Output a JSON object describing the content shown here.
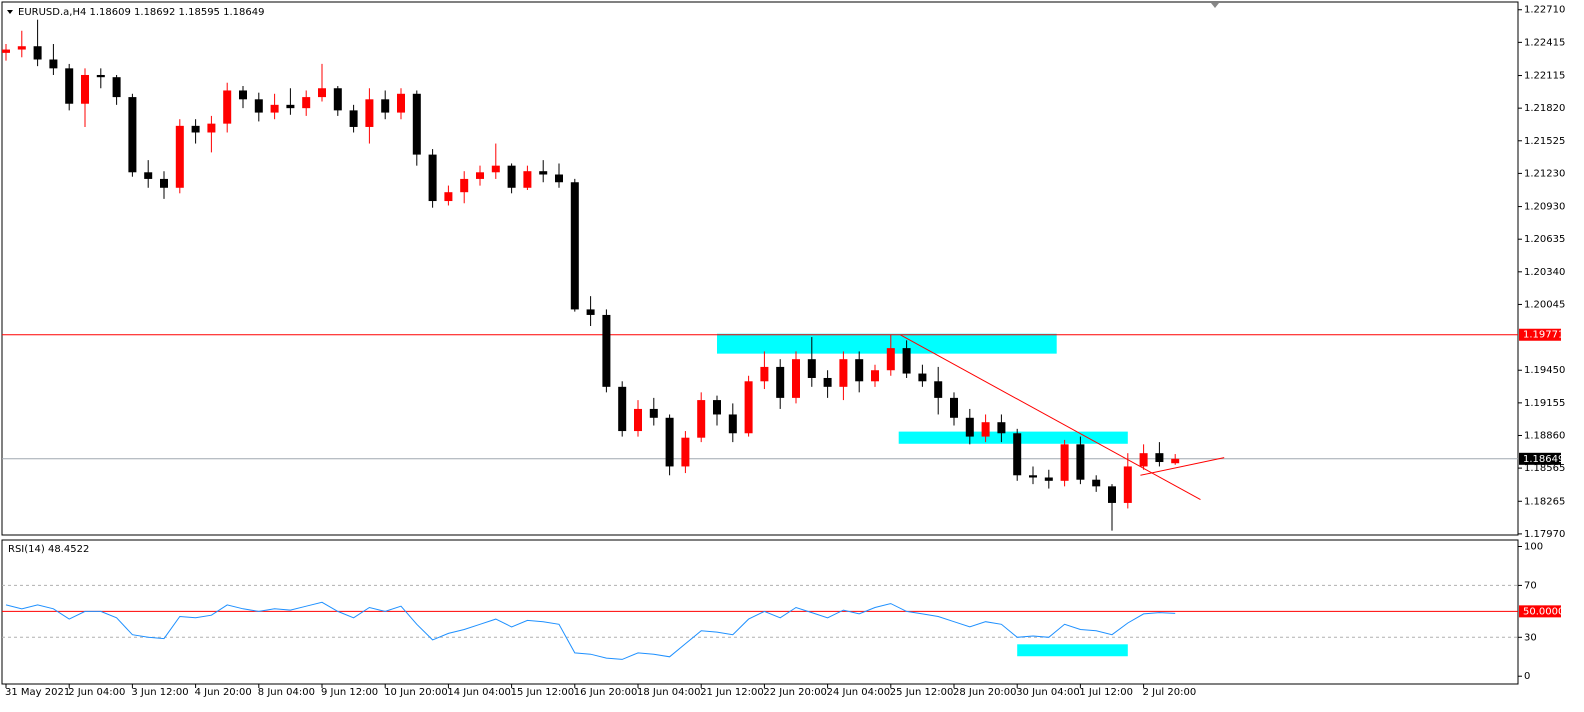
{
  "chart_data": [
    {
      "type": "candlestick",
      "title": "EURUSD.a,H4  1.18609 1.18692 1.18595 1.18649",
      "up_color": "#ff0000",
      "down_color": "#000000",
      "categories": [
        "31 May 2021",
        null,
        null,
        null,
        "2 Jun 04:00",
        null,
        null,
        null,
        "3 Jun 12:00",
        null,
        null,
        null,
        "4 Jun 20:00",
        null,
        null,
        null,
        "8 Jun 04:00",
        null,
        null,
        null,
        "9 Jun 12:00",
        null,
        null,
        null,
        "10 Jun 20:00",
        null,
        null,
        null,
        "14 Jun 04:00",
        null,
        null,
        null,
        "15 Jun 12:00",
        null,
        null,
        null,
        "16 Jun 20:00",
        null,
        null,
        null,
        "18 Jun 04:00",
        null,
        null,
        null,
        "21 Jun 12:00",
        null,
        null,
        null,
        "22 Jun 20:00",
        null,
        null,
        null,
        "24 Jun 04:00",
        null,
        null,
        null,
        "25 Jun 12:00",
        null,
        null,
        null,
        "28 Jun 20:00",
        null,
        null,
        null,
        "30 Jun 04:00",
        null,
        null,
        null,
        "1 Jul 12:00",
        null,
        null,
        null,
        "2 Jul 20:00",
        null,
        null
      ],
      "ohlc": [
        [
          1.2232,
          1.224,
          1.2225,
          1.2235
        ],
        [
          1.2235,
          1.2252,
          1.2228,
          1.2238
        ],
        [
          1.2238,
          1.2262,
          1.222,
          1.2226
        ],
        [
          1.2226,
          1.224,
          1.2212,
          1.2218
        ],
        [
          1.2218,
          1.2222,
          1.218,
          1.2186
        ],
        [
          1.2186,
          1.2218,
          1.2165,
          1.2212
        ],
        [
          1.2212,
          1.2218,
          1.22,
          1.221
        ],
        [
          1.221,
          1.2212,
          1.2185,
          1.2192
        ],
        [
          1.2192,
          1.2195,
          1.212,
          1.2124
        ],
        [
          1.2124,
          1.2135,
          1.211,
          1.2118
        ],
        [
          1.2118,
          1.2125,
          1.21,
          1.211
        ],
        [
          1.211,
          1.2172,
          1.2105,
          1.2166
        ],
        [
          1.2166,
          1.2172,
          1.215,
          1.216
        ],
        [
          1.216,
          1.2175,
          1.2142,
          1.2168
        ],
        [
          1.2168,
          1.2205,
          1.216,
          1.2198
        ],
        [
          1.2198,
          1.2202,
          1.2182,
          1.219
        ],
        [
          1.219,
          1.2196,
          1.217,
          1.2178
        ],
        [
          1.2178,
          1.2195,
          1.2172,
          1.2185
        ],
        [
          1.2185,
          1.22,
          1.2176,
          1.2182
        ],
        [
          1.2182,
          1.2198,
          1.2175,
          1.2192
        ],
        [
          1.2192,
          1.2222,
          1.2188,
          1.22
        ],
        [
          1.22,
          1.2202,
          1.2175,
          1.218
        ],
        [
          1.218,
          1.2185,
          1.216,
          1.2165
        ],
        [
          1.2165,
          1.22,
          1.215,
          1.219
        ],
        [
          1.219,
          1.2198,
          1.2172,
          1.2178
        ],
        [
          1.2178,
          1.22,
          1.2172,
          1.2195
        ],
        [
          1.2195,
          1.2198,
          1.213,
          1.214
        ],
        [
          1.214,
          1.2145,
          1.2092,
          1.2098
        ],
        [
          1.2098,
          1.2112,
          1.2094,
          1.2106
        ],
        [
          1.2106,
          1.2125,
          1.2096,
          1.2118
        ],
        [
          1.2118,
          1.213,
          1.2112,
          1.2124
        ],
        [
          1.2124,
          1.215,
          1.2118,
          1.213
        ],
        [
          1.213,
          1.2132,
          1.2105,
          1.211
        ],
        [
          1.211,
          1.213,
          1.2108,
          1.2125
        ],
        [
          1.2125,
          1.2135,
          1.2115,
          1.2122
        ],
        [
          1.2122,
          1.2132,
          1.211,
          1.2115
        ],
        [
          1.2115,
          1.2118,
          1.1998,
          1.2
        ],
        [
          1.2,
          1.2012,
          1.1985,
          1.1995
        ],
        [
          1.1995,
          1.2,
          1.1925,
          1.193
        ],
        [
          1.193,
          1.1935,
          1.1885,
          1.189
        ],
        [
          1.189,
          1.1918,
          1.1885,
          1.191
        ],
        [
          1.191,
          1.192,
          1.1895,
          1.1902
        ],
        [
          1.1902,
          1.1905,
          1.185,
          1.1858
        ],
        [
          1.1858,
          1.189,
          1.1852,
          1.1884
        ],
        [
          1.1884,
          1.1925,
          1.188,
          1.1918
        ],
        [
          1.1918,
          1.1922,
          1.1895,
          1.1905
        ],
        [
          1.1905,
          1.1915,
          1.188,
          1.1888
        ],
        [
          1.1888,
          1.194,
          1.1885,
          1.1935
        ],
        [
          1.1935,
          1.1962,
          1.1928,
          1.1948
        ],
        [
          1.1948,
          1.1955,
          1.191,
          1.192
        ],
        [
          1.192,
          1.1962,
          1.1915,
          1.1955
        ],
        [
          1.1955,
          1.1975,
          1.193,
          1.1938
        ],
        [
          1.1938,
          1.1945,
          1.192,
          1.193
        ],
        [
          1.193,
          1.1962,
          1.1918,
          1.1955
        ],
        [
          1.1955,
          1.1962,
          1.1925,
          1.1935
        ],
        [
          1.1935,
          1.195,
          1.193,
          1.1945
        ],
        [
          1.1945,
          1.1977,
          1.194,
          1.1965
        ],
        [
          1.1965,
          1.1972,
          1.1938,
          1.1942
        ],
        [
          1.1942,
          1.195,
          1.193,
          1.1935
        ],
        [
          1.1935,
          1.1948,
          1.1905,
          1.192
        ],
        [
          1.192,
          1.1925,
          1.1895,
          1.1902
        ],
        [
          1.1902,
          1.191,
          1.1878,
          1.1885
        ],
        [
          1.1885,
          1.1905,
          1.188,
          1.1898
        ],
        [
          1.1898,
          1.1905,
          1.188,
          1.1888
        ],
        [
          1.1888,
          1.1892,
          1.1845,
          1.185
        ],
        [
          1.185,
          1.1858,
          1.1842,
          1.1848
        ],
        [
          1.1848,
          1.1855,
          1.1838,
          1.1845
        ],
        [
          1.1845,
          1.1882,
          1.184,
          1.1878
        ],
        [
          1.1878,
          1.1885,
          1.1842,
          1.1846
        ],
        [
          1.1846,
          1.185,
          1.1835,
          1.184
        ],
        [
          1.184,
          1.1842,
          1.18,
          1.1825
        ],
        [
          1.1825,
          1.187,
          1.182,
          1.1858
        ],
        [
          1.1858,
          1.1878,
          1.1855,
          1.187
        ],
        [
          1.187,
          1.188,
          1.1858,
          1.1862
        ],
        [
          1.18609,
          1.18692,
          1.18595,
          1.18649
        ]
      ],
      "ylim": [
        1.1796,
        1.2278
      ],
      "yticks": [
        {
          "value": 1.2271,
          "label": "1.22710"
        },
        {
          "value": 1.22415,
          "label": "1.22415"
        },
        {
          "value": 1.22115,
          "label": "1.22115"
        },
        {
          "value": 1.2182,
          "label": "1.21820"
        },
        {
          "value": 1.21525,
          "label": "1.21525"
        },
        {
          "value": 1.2123,
          "label": "1.21230"
        },
        {
          "value": 1.2093,
          "label": "1.20930"
        },
        {
          "value": 1.20635,
          "label": "1.20635"
        },
        {
          "value": 1.2034,
          "label": "1.20340"
        },
        {
          "value": 1.20045,
          "label": "1.20045"
        },
        {
          "value": 1.1945,
          "label": "1.19450"
        },
        {
          "value": 1.19155,
          "label": "1.19155"
        },
        {
          "value": 1.1886,
          "label": "1.18860"
        },
        {
          "value": 1.18565,
          "label": "1.18565"
        },
        {
          "value": 1.18265,
          "label": "1.18265"
        },
        {
          "value": 1.1797,
          "label": "1.17970"
        }
      ],
      "hlines": [
        {
          "value": 1.19771,
          "color": "#ff0000",
          "line_color": "#ff0000"
        },
        {
          "value": 1.18649,
          "color": "#000000",
          "line_color": "#a0a8b0"
        }
      ],
      "zones": [
        {
          "x": [
            45,
            66.5
          ],
          "y": [
            1.1978,
            1.196
          ],
          "color": "#00ffff"
        },
        {
          "x": [
            56.5,
            71
          ],
          "y": [
            1.18895,
            1.18785
          ],
          "color": "#00ffff"
        }
      ],
      "lines": [
        {
          "x": [
            56.6,
            75.6
          ],
          "y": [
            1.1977,
            1.1828
          ],
          "color": "#ff0000"
        },
        {
          "x": [
            71.8,
            77.1
          ],
          "y": [
            1.185,
            1.1866
          ],
          "color": "#ff0000"
        }
      ]
    },
    {
      "type": "line",
      "title": "RSI(14) 48.4522",
      "color": "#1e90ff",
      "values": [
        55,
        52,
        55,
        52,
        44,
        50,
        50,
        45,
        32,
        30,
        29,
        46,
        45,
        47,
        55,
        52,
        50,
        52,
        51,
        54,
        57,
        50,
        45,
        53,
        50,
        54,
        40,
        28,
        33,
        36,
        40,
        44,
        38,
        43,
        42,
        40,
        18,
        17,
        14,
        13,
        18,
        17,
        15,
        25,
        35,
        34,
        32,
        44,
        50,
        45,
        53,
        49,
        45,
        51,
        48,
        53,
        56,
        50,
        48,
        46,
        42,
        38,
        42,
        40,
        30,
        31,
        30,
        40,
        36,
        35,
        32,
        41,
        48,
        49,
        48.45
      ],
      "ylim": [
        -6,
        105
      ],
      "yticks": [
        100,
        70,
        30,
        0
      ],
      "levels": [
        {
          "value": 70,
          "color": "#b0b0b0"
        },
        {
          "value": 30,
          "color": "#b0b0b0"
        },
        {
          "value": {
            "value": 50,
            "label": "50.0000"
          },
          "color": "#ff0000"
        }
      ],
      "zones": [
        {
          "x": [
            64,
            71
          ],
          "y": [
            24.6,
            15.4
          ],
          "color": "#00ffff"
        }
      ]
    }
  ]
}
